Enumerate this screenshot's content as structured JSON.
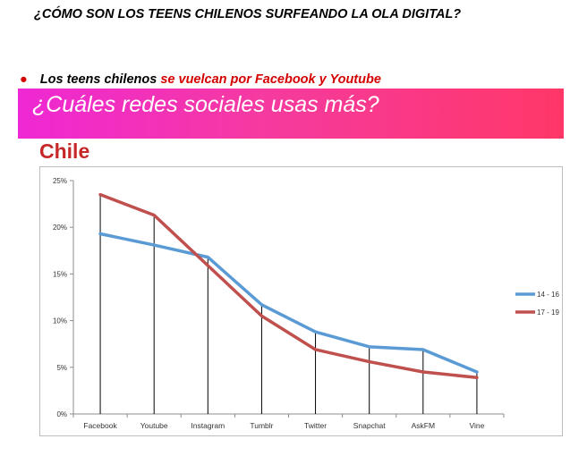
{
  "header": {
    "title": "¿CÓMO SON LOS TEENS CHILENOS SURFEANDO LA OLA DIGITAL?"
  },
  "bullet": {
    "symbol": "●",
    "text_black": "Los teens chilenos ",
    "text_red": "se vuelcan por Facebook y Youtube"
  },
  "banner": {
    "question": "¿Cuáles redes sociales usas más?"
  },
  "chart_title": "Chile",
  "colors": {
    "series_14_16": "#5b9bd5",
    "series_17_19": "#c0504d",
    "accent_red": "#c62828"
  },
  "chart_data": {
    "type": "line",
    "title": "Chile",
    "categories": [
      "Facebook",
      "Youtube",
      "Instagram",
      "Tumblr",
      "Twitter",
      "Snapchat",
      "AskFM",
      "Vine"
    ],
    "series": [
      {
        "name": "14 - 16",
        "color": "#5b9bd5",
        "values": [
          19.3,
          18.1,
          16.8,
          11.7,
          8.8,
          7.2,
          6.9,
          4.5
        ]
      },
      {
        "name": "17 - 19",
        "color": "#c0504d",
        "values": [
          23.5,
          21.3,
          15.9,
          10.5,
          6.9,
          5.6,
          4.5,
          3.9
        ]
      }
    ],
    "yticks": [
      "0%",
      "5%",
      "10%",
      "15%",
      "20%",
      "25%"
    ],
    "ylim": [
      0,
      25
    ],
    "drop_lines": true,
    "legend_position": "right",
    "grid": false
  }
}
